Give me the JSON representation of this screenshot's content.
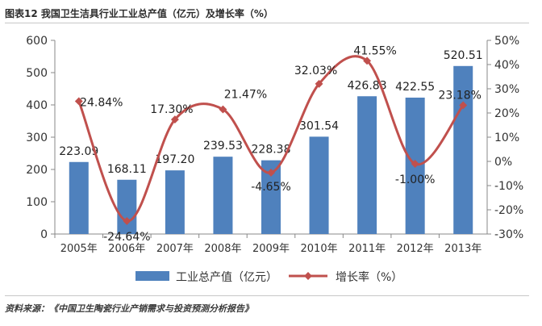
{
  "title": "图表12 我国卫生洁具行业工业总产值（亿元）及增长率（%）",
  "source": "资料来源：《中国卫生陶瓷行业产销需求与投资预测分析报告》",
  "colors": {
    "bar": "#4f81bd",
    "line": "#c0504d",
    "axis_text": "#333333",
    "axis_line": "#888888"
  },
  "chart_data": {
    "type": "bar+line",
    "categories": [
      "2005年",
      "2006年",
      "2007年",
      "2008年",
      "2009年",
      "2010年",
      "2011年",
      "2012年",
      "2013年"
    ],
    "series": [
      {
        "name": "工业总产值（亿元）",
        "type": "bar",
        "axis": "left",
        "values": [
          223.09,
          168.11,
          197.2,
          239.53,
          228.38,
          301.54,
          426.83,
          422.55,
          520.51
        ],
        "labels": [
          "223.09",
          "168.11",
          "197.20",
          "239.53",
          "228.38",
          "301.54",
          "426.83",
          "422.55",
          "520.51"
        ]
      },
      {
        "name": "增长率（%）",
        "type": "line",
        "axis": "right",
        "values": [
          24.84,
          -24.64,
          17.3,
          21.47,
          -4.65,
          32.03,
          41.55,
          -1.0,
          23.18
        ],
        "labels": [
          "24.84%",
          "-24.64%",
          "17.30%",
          "21.47%",
          "-4.65%",
          "32.03%",
          "41.55%",
          "-1.00%",
          "23.18%"
        ]
      }
    ],
    "y_left": {
      "min": 0,
      "max": 600,
      "ticks": [
        0,
        100,
        200,
        300,
        400,
        500,
        600
      ]
    },
    "y_right": {
      "min": -30,
      "max": 50,
      "ticks": [
        -30,
        -20,
        -10,
        0,
        10,
        20,
        30,
        40,
        50
      ],
      "tick_labels": [
        "-30%",
        "-20%",
        "-10%",
        "0%",
        "10%",
        "20%",
        "30%",
        "40%",
        "50%"
      ]
    },
    "legend_position": "bottom"
  }
}
